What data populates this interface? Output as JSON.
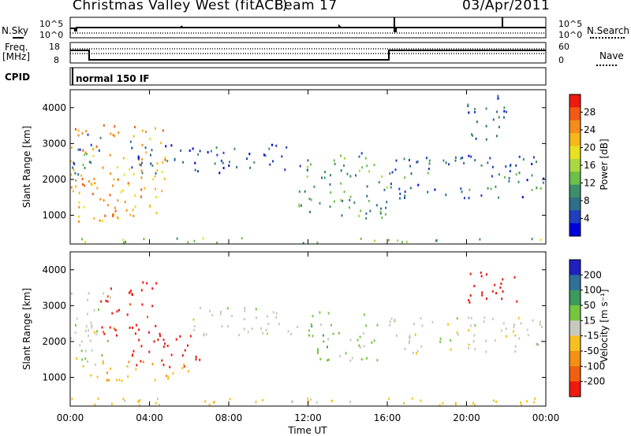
{
  "header": {
    "title": "Christmas Valley West (fitACF)",
    "beam": "Beam 17",
    "date": "03/Apr/2011"
  },
  "params": {
    "nsky_label": "N.Sky",
    "nsky_ticks": [
      "10^5",
      "10^0"
    ],
    "nsearch_label": "N.Search",
    "nsearch_ticks": [
      "10^5",
      "10^0"
    ],
    "freq_label_1": "Freq.",
    "freq_label_2": "[MHz]",
    "freq_ticks": [
      "18",
      "8"
    ],
    "nave_label": "Nave",
    "nave_ticks": [
      "60",
      "0"
    ],
    "cpid_label": "CPID",
    "cpid_value": "normal 150 IF"
  },
  "power_colorbar": {
    "label": "Power [dB]",
    "ticks": [
      "28",
      "24",
      "20",
      "16",
      "12",
      "8",
      "4"
    ],
    "colors": [
      "#0000dd",
      "#1f3fbf",
      "#2e6f8a",
      "#3d8f6a",
      "#6cbf4a",
      "#a8d840",
      "#e8e020",
      "#f6b71a",
      "#f58c1a",
      "#f25a14",
      "#ee1a10"
    ]
  },
  "velocity_colorbar": {
    "label": "Velocity [m s⁻¹]",
    "ticks": [
      "200",
      "100",
      "50",
      "15",
      "-15",
      "-50",
      "-100",
      "-200"
    ],
    "colors": [
      "#2020c0",
      "#2f6f9a",
      "#3c9a5c",
      "#76c640",
      "#c8c8c0",
      "#f6c020",
      "#f59012",
      "#f06010",
      "#ee1a10"
    ]
  },
  "chart_data": [
    {
      "type": "heatmap",
      "name": "power",
      "ylabel": "Slant Range [km]",
      "ylim": [
        200,
        4500
      ],
      "yticks": [
        "4000",
        "3000",
        "2000",
        "1000"
      ],
      "xlim": [
        "00:00",
        "24:00"
      ],
      "xtick_labels": [
        "00:00",
        "04:00",
        "08:00",
        "12:00",
        "16:00",
        "20:00",
        "00:00"
      ],
      "zlabel": "Power [dB]",
      "zlim": [
        0,
        30
      ],
      "regions": [
        {
          "t0": 0.0,
          "t1": 4.8,
          "r0": 800,
          "r1": 3600,
          "value": 22
        },
        {
          "t0": 0.0,
          "t1": 1.5,
          "r0": 2000,
          "r1": 3400,
          "value": 8
        },
        {
          "t0": 3.0,
          "t1": 7.5,
          "r0": 2200,
          "r1": 3100,
          "value": 6
        },
        {
          "t0": 7.0,
          "t1": 11.0,
          "r0": 2300,
          "r1": 3000,
          "value": 6
        },
        {
          "t0": 11.5,
          "t1": 16.0,
          "r0": 900,
          "r1": 2800,
          "value": 10
        },
        {
          "t0": 16.0,
          "t1": 24.0,
          "r0": 1500,
          "r1": 2700,
          "value": 7
        },
        {
          "t0": 20.0,
          "t1": 22.0,
          "r0": 3000,
          "r1": 4400,
          "value": 6
        },
        {
          "t0": 0.0,
          "t1": 24.0,
          "r0": 200,
          "r1": 400,
          "value": 14
        }
      ]
    },
    {
      "type": "heatmap",
      "name": "velocity",
      "ylabel": "Slant Range [km]",
      "ylim": [
        200,
        4500
      ],
      "yticks": [
        "4000",
        "3000",
        "2000",
        "1000"
      ],
      "xlabel": "Time UT",
      "xlim": [
        "00:00",
        "24:00"
      ],
      "xtick_labels": [
        "00:00",
        "04:00",
        "08:00",
        "12:00",
        "16:00",
        "20:00",
        "00:00"
      ],
      "zlabel": "Velocity [m s⁻¹]",
      "zlim": [
        -200,
        200
      ],
      "regions": [
        {
          "t0": 0.0,
          "t1": 2.0,
          "r0": 1200,
          "r1": 3400,
          "value": 0
        },
        {
          "t0": 1.5,
          "t1": 4.5,
          "r0": 2200,
          "r1": 3700,
          "value": -180
        },
        {
          "t0": 3.0,
          "t1": 6.5,
          "r0": 1300,
          "r1": 2300,
          "value": -200
        },
        {
          "t0": 1.0,
          "t1": 6.0,
          "r0": 900,
          "r1": 1500,
          "value": -60
        },
        {
          "t0": 6.0,
          "t1": 11.5,
          "r0": 2200,
          "r1": 3000,
          "value": 0
        },
        {
          "t0": 12.0,
          "t1": 15.5,
          "r0": 1500,
          "r1": 2900,
          "value": 40
        },
        {
          "t0": 16.0,
          "t1": 24.0,
          "r0": 1700,
          "r1": 2700,
          "value": 0
        },
        {
          "t0": 20.0,
          "t1": 22.5,
          "r0": 3000,
          "r1": 4000,
          "value": -200
        },
        {
          "t0": 0.0,
          "t1": 24.0,
          "r0": 200,
          "r1": 450,
          "value": -40
        }
      ]
    }
  ]
}
